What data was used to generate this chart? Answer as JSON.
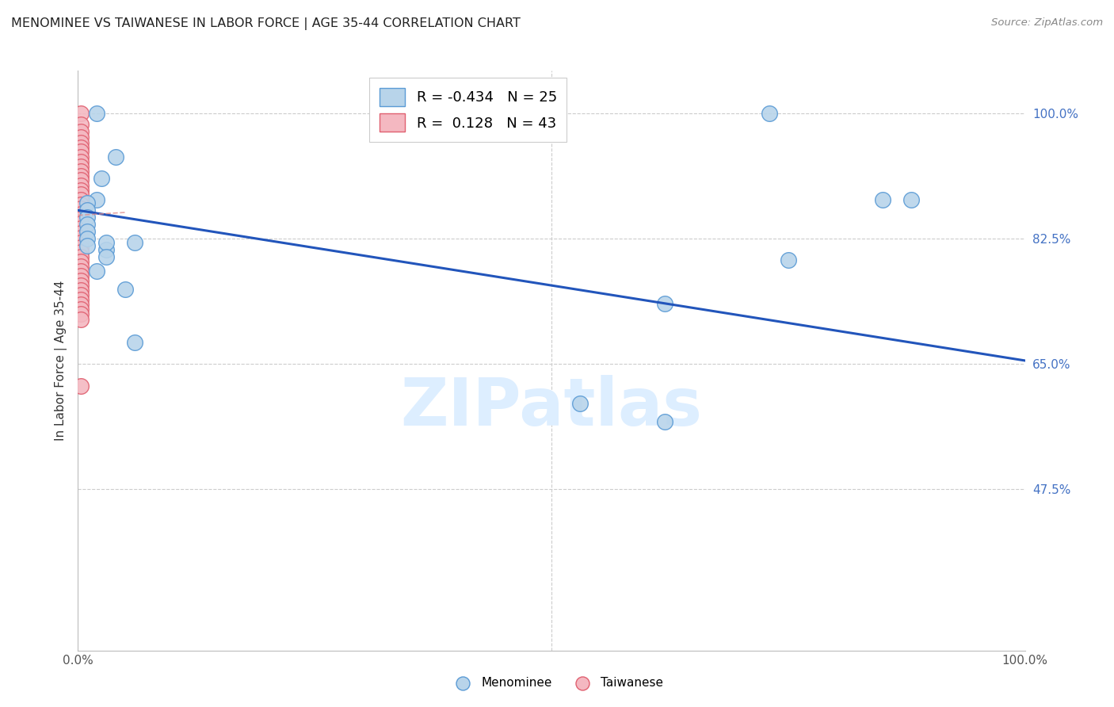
{
  "title": "MENOMINEE VS TAIWANESE IN LABOR FORCE | AGE 35-44 CORRELATION CHART",
  "source": "Source: ZipAtlas.com",
  "ylabel": "In Labor Force | Age 35-44",
  "ytick_values": [
    1.0,
    0.825,
    0.65,
    0.475
  ],
  "ytick_labels": [
    "100.0%",
    "82.5%",
    "65.0%",
    "47.5%"
  ],
  "xlim": [
    0.0,
    1.0
  ],
  "ylim": [
    0.25,
    1.06
  ],
  "menominee_color": "#b8d4ea",
  "menominee_edge": "#5b9bd5",
  "taiwanese_color": "#f4b8c1",
  "taiwanese_edge": "#e06070",
  "trendline_blue": "#2255bb",
  "trendline_pink": "#dd8888",
  "watermark_text": "ZIPatlas",
  "watermark_color": "#ddeeff",
  "legend_items": [
    {
      "label": "R = -0.434   N = 25",
      "fc": "#b8d4ea",
      "ec": "#5b9bd5"
    },
    {
      "label": "R =  0.128   N = 43",
      "fc": "#f4b8c1",
      "ec": "#e06070"
    }
  ],
  "menominee_x": [
    0.02,
    0.04,
    0.025,
    0.02,
    0.01,
    0.01,
    0.01,
    0.01,
    0.01,
    0.01,
    0.01,
    0.03,
    0.05,
    0.06,
    0.03,
    0.03,
    0.02,
    0.06,
    0.73,
    0.85,
    0.88,
    0.62,
    0.75,
    0.62,
    0.53
  ],
  "menominee_y": [
    1.0,
    0.94,
    0.91,
    0.88,
    0.875,
    0.865,
    0.855,
    0.845,
    0.835,
    0.825,
    0.815,
    0.81,
    0.755,
    0.82,
    0.82,
    0.8,
    0.78,
    0.68,
    1.0,
    0.88,
    0.88,
    0.57,
    0.795,
    0.735,
    0.595
  ],
  "taiwanese_x": [
    0.003,
    0.003,
    0.003,
    0.003,
    0.003,
    0.003,
    0.003,
    0.003,
    0.003,
    0.003,
    0.003,
    0.003,
    0.003,
    0.003,
    0.003,
    0.003,
    0.003,
    0.003,
    0.003,
    0.003,
    0.003,
    0.003,
    0.003,
    0.003,
    0.003,
    0.003,
    0.003,
    0.003,
    0.003,
    0.003,
    0.003,
    0.003,
    0.003,
    0.003,
    0.003,
    0.003,
    0.003,
    0.003,
    0.003,
    0.003,
    0.003,
    0.003,
    0.003
  ],
  "taiwanese_y": [
    1.0,
    0.985,
    0.975,
    0.967,
    0.96,
    0.953,
    0.947,
    0.94,
    0.933,
    0.926,
    0.92,
    0.913,
    0.907,
    0.9,
    0.893,
    0.887,
    0.88,
    0.873,
    0.867,
    0.86,
    0.853,
    0.847,
    0.84,
    0.833,
    0.827,
    0.82,
    0.813,
    0.807,
    0.8,
    0.793,
    0.787,
    0.78,
    0.773,
    0.767,
    0.76,
    0.753,
    0.747,
    0.74,
    0.733,
    0.727,
    0.72,
    0.713,
    0.62
  ],
  "blue_trend_x0": 0.0,
  "blue_trend_y0": 0.865,
  "blue_trend_x1": 1.0,
  "blue_trend_y1": 0.655,
  "pink_trend_x0": 0.0,
  "pink_trend_y0": 0.858,
  "pink_trend_x1": 0.05,
  "pink_trend_y1": 0.862,
  "grid_color": "#cccccc",
  "grid_style": "--",
  "right_tick_color": "#4472c4",
  "bottom_legend_items": [
    {
      "label": "Menominee",
      "fc": "#b8d4ea",
      "ec": "#5b9bd5"
    },
    {
      "label": "Taiwanese",
      "fc": "#f4b8c1",
      "ec": "#e06070"
    }
  ]
}
